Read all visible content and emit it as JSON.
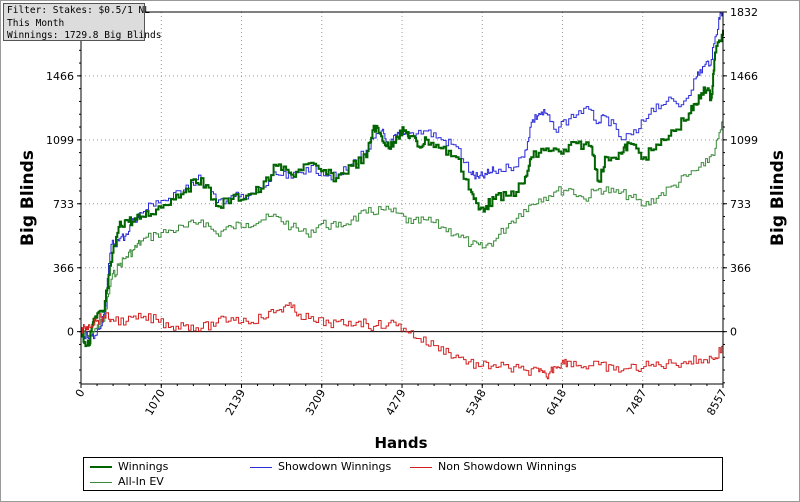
{
  "info": {
    "filter": "Filter: Stakes: $0.5/1 NL",
    "period": "This Month",
    "winnings": "Winnings: 1729.8 Big Blinds"
  },
  "chart_data": {
    "type": "line",
    "xlabel": "Hands",
    "ylabel": "Big Blinds",
    "xlim": [
      0,
      8557
    ],
    "ylim": [
      -300,
      1832
    ],
    "x_ticks": [
      "0",
      "1070",
      "2139",
      "3209",
      "4279",
      "5348",
      "6418",
      "7487",
      "8557"
    ],
    "x_tick_values": [
      0,
      1070,
      2139,
      3209,
      4279,
      5348,
      6418,
      7487,
      8557
    ],
    "y_ticks": [
      "0",
      "366",
      "733",
      "1099",
      "1466",
      "1832"
    ],
    "y_tick_values": [
      0,
      366,
      733,
      1099,
      1466,
      1832
    ],
    "grid": true,
    "legend_position": "bottom",
    "series": [
      {
        "name": "Winnings",
        "color": "#006400",
        "x": [
          0,
          50,
          100,
          150,
          200,
          300,
          400,
          500,
          600,
          700,
          800,
          1000,
          1200,
          1400,
          1600,
          1800,
          2000,
          2200,
          2400,
          2600,
          2800,
          3000,
          3200,
          3400,
          3600,
          3800,
          3900,
          4000,
          4100,
          4200,
          4300,
          4400,
          4500,
          4600,
          4800,
          5000,
          5200,
          5300,
          5400,
          5500,
          5700,
          5900,
          6000,
          6200,
          6400,
          6600,
          6800,
          6900,
          7000,
          7200,
          7300,
          7500,
          7700,
          7900,
          8100,
          8200,
          8300,
          8400,
          8450,
          8557
        ],
        "y": [
          0,
          -60,
          -80,
          40,
          80,
          120,
          400,
          600,
          640,
          630,
          660,
          700,
          760,
          820,
          880,
          720,
          760,
          780,
          820,
          950,
          900,
          960,
          920,
          880,
          950,
          1000,
          1180,
          1120,
          1050,
          1120,
          1150,
          1120,
          1060,
          1100,
          1050,
          1000,
          800,
          700,
          720,
          760,
          780,
          850,
          1000,
          1050,
          1020,
          1080,
          1060,
          860,
          1000,
          1020,
          1080,
          1000,
          1070,
          1150,
          1250,
          1300,
          1400,
          1340,
          1600,
          1730
        ]
      },
      {
        "name": "Showdown Winnings",
        "color": "#2b2bd9",
        "x": [
          0,
          100,
          200,
          300,
          400,
          500,
          600,
          700,
          800,
          1000,
          1200,
          1400,
          1600,
          1800,
          2000,
          2200,
          2400,
          2600,
          2800,
          3000,
          3200,
          3400,
          3600,
          3800,
          4000,
          4100,
          4200,
          4300,
          4400,
          4600,
          4800,
          5000,
          5200,
          5300,
          5400,
          5500,
          5700,
          5900,
          6000,
          6100,
          6200,
          6300,
          6500,
          6700,
          6900,
          7000,
          7200,
          7400,
          7600,
          7800,
          8000,
          8200,
          8300,
          8400,
          8500,
          8557
        ],
        "y": [
          0,
          -40,
          -20,
          100,
          500,
          520,
          560,
          640,
          680,
          750,
          760,
          840,
          880,
          740,
          780,
          760,
          820,
          900,
          880,
          940,
          920,
          880,
          960,
          1040,
          1150,
          1060,
          1120,
          1130,
          1140,
          1150,
          1100,
          1060,
          900,
          880,
          900,
          920,
          940,
          1000,
          1200,
          1250,
          1250,
          1160,
          1220,
          1280,
          1200,
          1230,
          1100,
          1140,
          1280,
          1320,
          1300,
          1460,
          1520,
          1560,
          1800,
          1832
        ]
      },
      {
        "name": "Non Showdown Winnings",
        "color": "#d22020",
        "x": [
          0,
          50,
          100,
          200,
          300,
          400,
          600,
          800,
          1000,
          1200,
          1400,
          1600,
          1800,
          2000,
          2200,
          2400,
          2600,
          2750,
          2900,
          3100,
          3300,
          3500,
          3700,
          3900,
          4100,
          4300,
          4500,
          4700,
          4900,
          5100,
          5300,
          5500,
          5700,
          5900,
          6100,
          6200,
          6300,
          6400,
          6500,
          6700,
          6900,
          7100,
          7300,
          7500,
          7700,
          7900,
          8100,
          8300,
          8450,
          8557
        ],
        "y": [
          0,
          20,
          40,
          60,
          90,
          70,
          60,
          80,
          70,
          30,
          40,
          20,
          50,
          80,
          60,
          80,
          120,
          150,
          100,
          60,
          50,
          40,
          60,
          30,
          50,
          20,
          -40,
          -80,
          -120,
          -160,
          -200,
          -190,
          -210,
          -220,
          -230,
          -260,
          -200,
          -180,
          -170,
          -200,
          -190,
          -220,
          -210,
          -200,
          -190,
          -180,
          -170,
          -160,
          -150,
          -80
        ]
      },
      {
        "name": "All-In EV",
        "color": "#3a8a3a",
        "x": [
          0,
          100,
          200,
          300,
          400,
          500,
          600,
          700,
          800,
          1000,
          1200,
          1400,
          1600,
          1800,
          2000,
          2200,
          2400,
          2600,
          2800,
          3000,
          3200,
          3400,
          3600,
          3800,
          4000,
          4200,
          4400,
          4600,
          4800,
          5000,
          5200,
          5348,
          5500,
          5700,
          5900,
          6100,
          6300,
          6500,
          6700,
          6900,
          7100,
          7300,
          7500,
          7700,
          7900,
          8100,
          8300,
          8450,
          8557
        ],
        "y": [
          0,
          -30,
          20,
          60,
          300,
          380,
          430,
          470,
          520,
          560,
          580,
          600,
          640,
          560,
          600,
          620,
          640,
          660,
          600,
          560,
          620,
          600,
          640,
          680,
          700,
          680,
          620,
          640,
          600,
          560,
          500,
          480,
          520,
          620,
          700,
          760,
          800,
          820,
          760,
          820,
          800,
          780,
          720,
          780,
          840,
          900,
          950,
          1050,
          1200
        ]
      }
    ]
  }
}
